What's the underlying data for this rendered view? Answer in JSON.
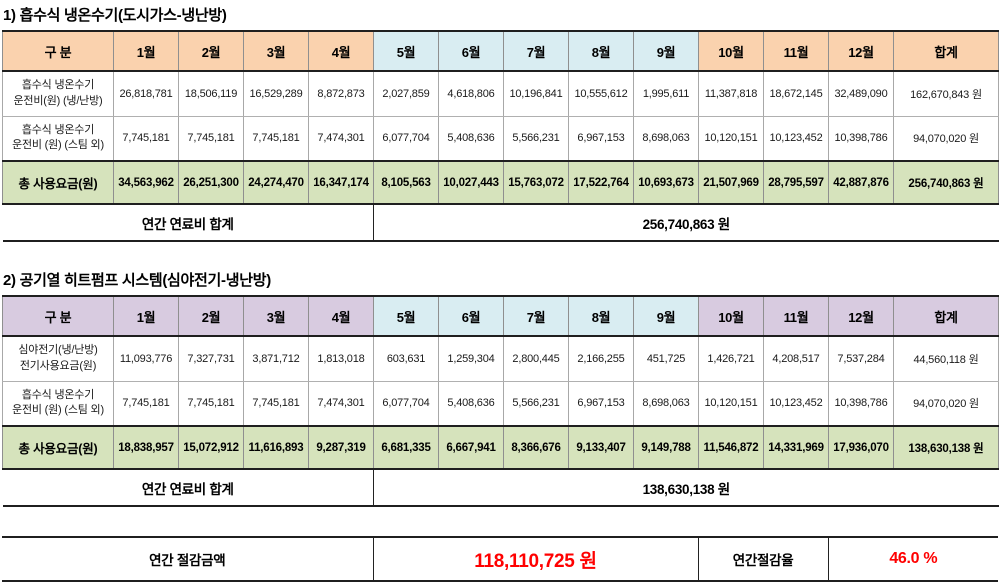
{
  "t1": {
    "title": "1) 흡수식 냉온수기(도시가스-냉난방)",
    "header": [
      "구 분",
      "1월",
      "2월",
      "3월",
      "4월",
      "5월",
      "6월",
      "7월",
      "8월",
      "9월",
      "10월",
      "11월",
      "12월",
      "합계"
    ],
    "r1": {
      "label1": "흡수식 냉온수기",
      "label2": "운전비(원) (냉/난방)",
      "v": [
        "26,818,781",
        "18,506,119",
        "16,529,289",
        "8,872,873",
        "2,027,859",
        "4,618,806",
        "10,196,841",
        "10,555,612",
        "1,995,611",
        "11,387,818",
        "18,672,145",
        "32,489,090"
      ],
      "sum": "162,670,843 원"
    },
    "r2": {
      "label1": "흡수식 냉온수기",
      "label2": "운전비 (원) (스팀 외)",
      "v": [
        "7,745,181",
        "7,745,181",
        "7,745,181",
        "7,474,301",
        "6,077,704",
        "5,408,636",
        "5,566,231",
        "6,967,153",
        "8,698,063",
        "10,120,151",
        "10,123,452",
        "10,398,786"
      ],
      "sum": "94,070,020 원"
    },
    "tot": {
      "label": "총 사용요금(원)",
      "v": [
        "34,563,962",
        "26,251,300",
        "24,274,470",
        "16,347,174",
        "8,105,563",
        "10,027,443",
        "15,763,072",
        "17,522,764",
        "10,693,673",
        "21,507,969",
        "28,795,597",
        "42,887,876"
      ],
      "sum": "256,740,863 원"
    },
    "foot": {
      "label": "연간 연료비 합계",
      "value": "256,740,863 원"
    }
  },
  "t2": {
    "title": "2) 공기열 히트펌프 시스템(심야전기-냉난방)",
    "header": [
      "구 분",
      "1월",
      "2월",
      "3월",
      "4월",
      "5월",
      "6월",
      "7월",
      "8월",
      "9월",
      "10월",
      "11월",
      "12월",
      "합계"
    ],
    "r1": {
      "label1": "심야전기(냉/난방)",
      "label2": "전기사용요금(원)",
      "v": [
        "11,093,776",
        "7,327,731",
        "3,871,712",
        "1,813,018",
        "603,631",
        "1,259,304",
        "2,800,445",
        "2,166,255",
        "451,725",
        "1,426,721",
        "4,208,517",
        "7,537,284"
      ],
      "sum": "44,560,118 원"
    },
    "r2": {
      "label1": "흡수식 냉온수기",
      "label2": "운전비 (원) (스팀 외)",
      "v": [
        "7,745,181",
        "7,745,181",
        "7,745,181",
        "7,474,301",
        "6,077,704",
        "5,408,636",
        "5,566,231",
        "6,967,153",
        "8,698,063",
        "10,120,151",
        "10,123,452",
        "10,398,786"
      ],
      "sum": "94,070,020 원"
    },
    "tot": {
      "label": "총 사용요금(원)",
      "v": [
        "18,838,957",
        "15,072,912",
        "11,616,893",
        "9,287,319",
        "6,681,335",
        "6,667,941",
        "8,366,676",
        "9,133,407",
        "9,149,788",
        "11,546,872",
        "14,331,969",
        "17,936,070"
      ],
      "sum": "138,630,138 원"
    },
    "foot": {
      "label": "연간 연료비 합계",
      "value": "138,630,138 원"
    }
  },
  "summary": {
    "savings_label": "연간 절감금액",
    "savings_value": "118,110,725 원",
    "rate_label": "연간절감율",
    "rate_value": "46.0 %"
  },
  "colors": {
    "peach_header": "#FAD2AE",
    "blue_header": "#D9EDF2",
    "purple_header": "#D8CBE0",
    "green_total": "#D6E3BC",
    "highlight_red": "#FF0000"
  }
}
